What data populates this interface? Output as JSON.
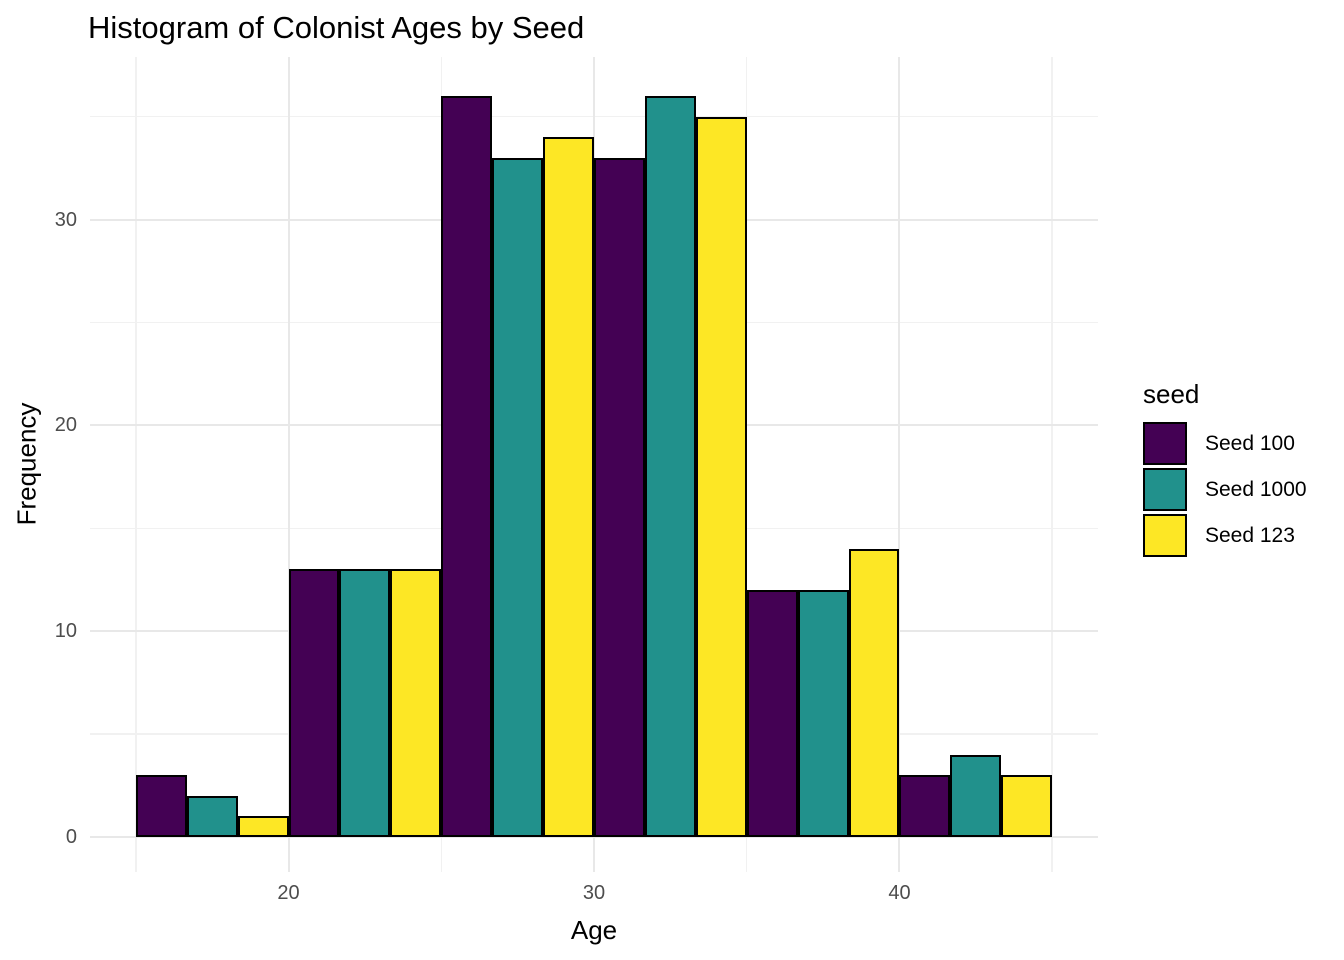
{
  "chart_data": {
    "type": "bar",
    "subtype": "grouped-dodged-histogram",
    "title": "Histogram of Colonist Ages by Seed",
    "xlabel": "Age",
    "ylabel": "Frequency",
    "legend_title": "seed",
    "legend_position": "right",
    "bin_edges": [
      15,
      20,
      25,
      30,
      35,
      40,
      45
    ],
    "bin_labels": [
      "15-20",
      "20-25",
      "25-30",
      "30-35",
      "35-40",
      "40-45"
    ],
    "series": [
      {
        "name": "Seed 100",
        "color": "#440154",
        "values": [
          3,
          13,
          36,
          33,
          12,
          3
        ]
      },
      {
        "name": "Seed 1000",
        "color": "#21918C",
        "values": [
          2,
          13,
          33,
          36,
          12,
          4
        ]
      },
      {
        "name": "Seed 123",
        "color": "#FDE725",
        "values": [
          1,
          13,
          34,
          35,
          14,
          3
        ]
      }
    ],
    "x_ticks": [
      20,
      30,
      40
    ],
    "y_ticks": [
      0,
      10,
      20,
      30
    ],
    "x_minor_gridlines": [
      15,
      25,
      35,
      45
    ],
    "y_minor_gridlines": [
      5,
      15,
      25,
      35
    ],
    "xlim": [
      13.5,
      46.5
    ],
    "ylim": [
      -1.7,
      37.9
    ],
    "grid": "on",
    "colors": {
      "bar_outline": "#000000",
      "grid_major": "#E8E8E8",
      "grid_minor": "#F1F1F1",
      "tick_label": "#4D4D4D",
      "text": "#000000",
      "background": "#FFFFFF"
    }
  }
}
